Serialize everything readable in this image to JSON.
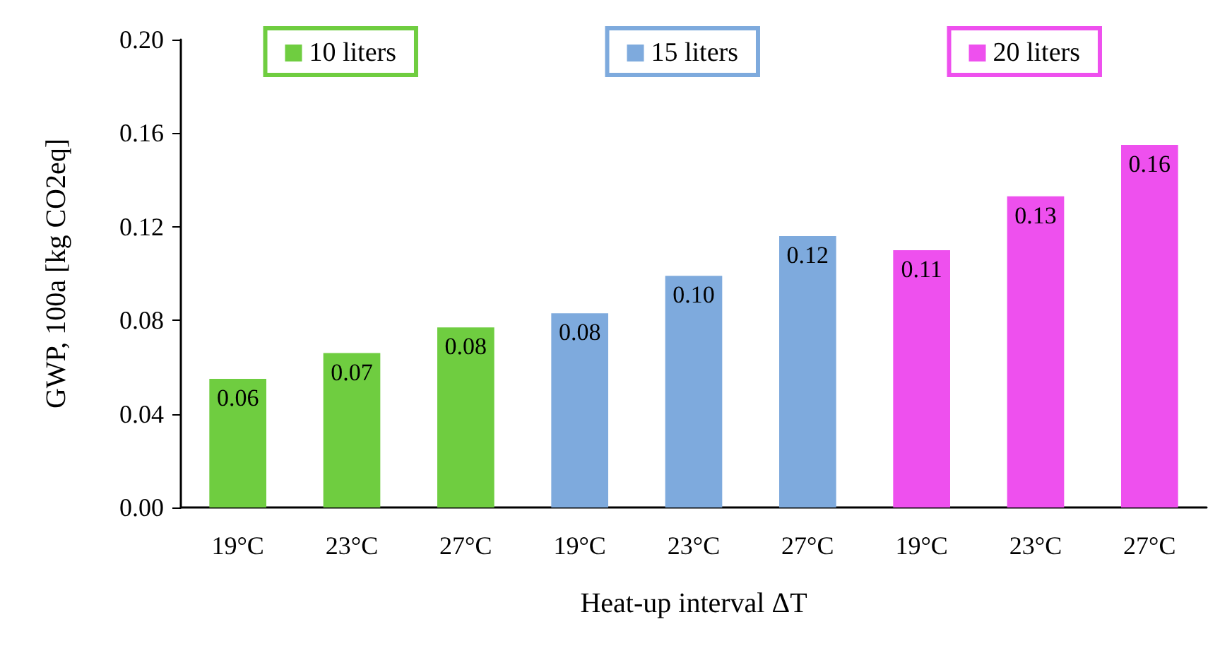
{
  "chart_data": {
    "type": "bar",
    "xlabel": "Heat-up interval ΔT",
    "ylabel": "GWP, 100a [kg CO2eq]",
    "categories": [
      "19°C",
      "23°C",
      "27°C",
      "19°C",
      "23°C",
      "27°C",
      "19°C",
      "23°C",
      "27°C"
    ],
    "series": [
      {
        "name": "10 liters",
        "color": "#6fcd40",
        "values": [
          0.055,
          0.066,
          0.077,
          null,
          null,
          null,
          null,
          null,
          null
        ],
        "value_labels": [
          "0.06",
          "0.07",
          "0.08",
          null,
          null,
          null,
          null,
          null,
          null
        ]
      },
      {
        "name": "15 liters",
        "color": "#7eaadd",
        "values": [
          null,
          null,
          null,
          0.083,
          0.099,
          0.116,
          null,
          null,
          null
        ],
        "value_labels": [
          null,
          null,
          null,
          "0.08",
          "0.10",
          "0.12",
          null,
          null,
          null
        ]
      },
      {
        "name": "20 liters",
        "color": "#ee50ee",
        "values": [
          null,
          null,
          null,
          null,
          null,
          null,
          0.11,
          0.133,
          0.155
        ],
        "value_labels": [
          null,
          null,
          null,
          null,
          null,
          null,
          "0.11",
          "0.13",
          "0.16"
        ]
      }
    ],
    "ylim": [
      0,
      0.2
    ],
    "yticks": [
      {
        "value": 0,
        "label": "0.00"
      },
      0.04,
      0.08,
      0.12,
      0.16,
      {
        "value": 0.2,
        "label": "0.20"
      }
    ],
    "grid": false,
    "legend": "top"
  }
}
